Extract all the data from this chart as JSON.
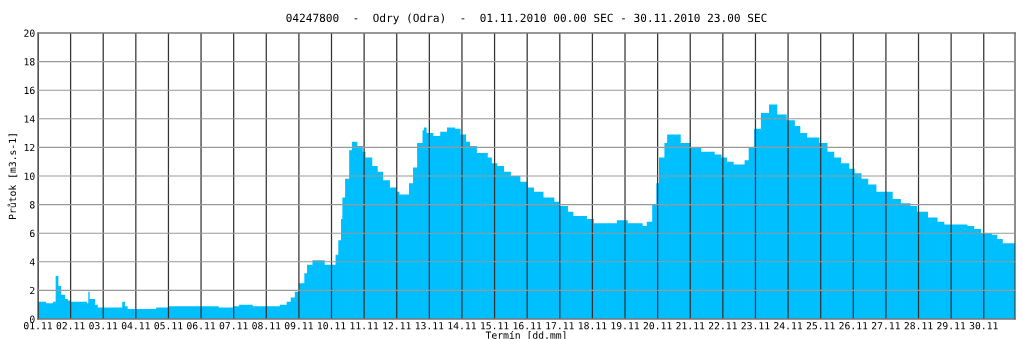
{
  "chart_data": {
    "type": "area",
    "title": "04247800  -  Odry (Odra)  -  01.11.2010 00.00 SEC - 30.11.2010 23.00 SEC",
    "xlabel": "Termín [dd.mm]",
    "ylabel": "Průtok [m3.s-1]",
    "series": [
      {
        "color": "#00bfff",
        "line_style": "step",
        "x": [
          "2010-11-01T00:00",
          "2010-11-01T06:00",
          "2010-11-01T11:00",
          "2010-11-01T13:00",
          "2010-11-01T15:00",
          "2010-11-01T17:00",
          "2010-11-01T20:00",
          "2010-11-01T22:00",
          "2010-11-02T00:00",
          "2010-11-02T12:00",
          "2010-11-02T13:00",
          "2010-11-02T14:00",
          "2010-11-02T18:00",
          "2010-11-02T20:00",
          "2010-11-03T12:00",
          "2010-11-03T14:00",
          "2010-11-03T16:00",
          "2010-11-03T18:00",
          "2010-11-04T13:00",
          "2010-11-04T15:00",
          "2010-11-05T00:00",
          "2010-11-06T12:00",
          "2010-11-06T13:00",
          "2010-11-07T00:00",
          "2010-11-07T04:00",
          "2010-11-07T14:00",
          "2010-11-08T10:00",
          "2010-11-08T15:00",
          "2010-11-08T18:00",
          "2010-11-08T21:00",
          "2010-11-09T00:00",
          "2010-11-09T04:00",
          "2010-11-09T06:00",
          "2010-11-09T10:00",
          "2010-11-09T17:00",
          "2010-11-09T19:00",
          "2010-11-10T03:00",
          "2010-11-10T05:00",
          "2010-11-10T07:00",
          "2010-11-10T08:00",
          "2010-11-10T10:00",
          "2010-11-10T13:00",
          "2010-11-10T15:00",
          "2010-11-10T19:00",
          "2010-11-10T23:00",
          "2010-11-11T01:00",
          "2010-11-11T06:00",
          "2010-11-11T10:00",
          "2010-11-11T14:00",
          "2010-11-11T19:00",
          "2010-11-12T00:00",
          "2010-11-12T02:00",
          "2010-11-12T09:00",
          "2010-11-12T12:00",
          "2010-11-12T15:00",
          "2010-11-12T19:00",
          "2010-11-12T20:00",
          "2010-11-12T22:00",
          "2010-11-13T03:00",
          "2010-11-13T08:00",
          "2010-11-13T13:00",
          "2010-11-13T19:00",
          "2010-11-13T23:00",
          "2010-11-14T03:00",
          "2010-11-14T06:00",
          "2010-11-14T11:00",
          "2010-11-14T19:00",
          "2010-11-14T22:00",
          "2010-11-15T02:00",
          "2010-11-15T07:00",
          "2010-11-15T12:00",
          "2010-11-15T19:00",
          "2010-11-16T00:00",
          "2010-11-16T05:00",
          "2010-11-16T12:00",
          "2010-11-16T20:00",
          "2010-11-17T00:00",
          "2010-11-17T06:00",
          "2010-11-17T10:00",
          "2010-11-17T20:00",
          "2010-11-18T01:00",
          "2010-11-18T18:00",
          "2010-11-19T02:00",
          "2010-11-19T13:00",
          "2010-11-19T16:00",
          "2010-11-19T20:00",
          "2010-11-19T23:00",
          "2010-11-20T01:00",
          "2010-11-20T05:00",
          "2010-11-20T07:00",
          "2010-11-20T17:00",
          "2010-11-21T00:00",
          "2010-11-21T08:00",
          "2010-11-21T18:00",
          "2010-11-21T23:00",
          "2010-11-22T03:00",
          "2010-11-22T08:00",
          "2010-11-22T16:00",
          "2010-11-22T19:00",
          "2010-11-22T23:00",
          "2010-11-23T04:00",
          "2010-11-23T10:00",
          "2010-11-23T16:00",
          "2010-11-23T23:00",
          "2010-11-24T05:00",
          "2010-11-24T09:00",
          "2010-11-24T14:00",
          "2010-11-24T23:00",
          "2010-11-25T05:00",
          "2010-11-25T10:00",
          "2010-11-25T15:00",
          "2010-11-25T21:00",
          "2010-11-26T01:00",
          "2010-11-26T06:00",
          "2010-11-26T11:00",
          "2010-11-26T17:00",
          "2010-11-27T05:00",
          "2010-11-27T11:00",
          "2010-11-27T18:00",
          "2010-11-27T23:00",
          "2010-11-28T07:00",
          "2010-11-28T14:00",
          "2010-11-28T19:00",
          "2010-11-29T12:00",
          "2010-11-29T17:00",
          "2010-11-29T22:00",
          "2010-11-30T06:00",
          "2010-11-30T10:00",
          "2010-11-30T14:00",
          "2010-11-30T23:00"
        ],
        "values": [
          1.2,
          1.1,
          1.2,
          3.0,
          2.3,
          1.7,
          1.4,
          1.3,
          1.2,
          1.1,
          1.9,
          1.4,
          1.0,
          0.8,
          0.8,
          1.2,
          0.9,
          0.7,
          0.7,
          0.8,
          0.9,
          0.9,
          0.8,
          0.9,
          1.0,
          0.9,
          1.0,
          1.2,
          1.5,
          1.9,
          2.5,
          3.2,
          3.8,
          4.1,
          4.1,
          3.8,
          4.5,
          5.5,
          7.0,
          8.5,
          9.8,
          11.8,
          12.4,
          12.1,
          11.7,
          11.3,
          10.7,
          10.3,
          9.7,
          9.2,
          8.9,
          8.7,
          9.5,
          10.6,
          12.3,
          13.2,
          13.4,
          13.0,
          12.8,
          13.1,
          13.4,
          13.3,
          12.9,
          12.4,
          12.1,
          11.6,
          11.3,
          10.9,
          10.7,
          10.3,
          10.0,
          9.6,
          9.2,
          8.9,
          8.5,
          8.2,
          7.9,
          7.5,
          7.2,
          7.0,
          6.7,
          6.9,
          6.7,
          6.5,
          6.8,
          8.0,
          9.5,
          11.3,
          12.3,
          12.9,
          12.3,
          12.0,
          11.7,
          11.5,
          11.3,
          11.0,
          10.8,
          11.1,
          12.0,
          13.3,
          14.4,
          15.0,
          14.3,
          13.9,
          13.5,
          13.0,
          12.7,
          12.3,
          11.7,
          11.3,
          10.9,
          10.5,
          10.2,
          9.8,
          9.4,
          8.9,
          8.4,
          8.1,
          7.9,
          7.5,
          7.1,
          6.8,
          6.6,
          6.5,
          6.3,
          6.0,
          5.9,
          5.6,
          5.3,
          5.3
        ]
      }
    ],
    "xlim": [
      "2010-11-01T00:00",
      "2010-11-30T23:00"
    ],
    "xticks": [
      {
        "value": "2010-11-01",
        "label": "01.11"
      },
      {
        "value": "2010-11-02",
        "label": "02.11"
      },
      {
        "value": "2010-11-03",
        "label": "03.11"
      },
      {
        "value": "2010-11-04",
        "label": "04.11"
      },
      {
        "value": "2010-11-05",
        "label": "05.11"
      },
      {
        "value": "2010-11-06",
        "label": "06.11"
      },
      {
        "value": "2010-11-07",
        "label": "07.11"
      },
      {
        "value": "2010-11-08",
        "label": "08.11"
      },
      {
        "value": "2010-11-09",
        "label": "09.11"
      },
      {
        "value": "2010-11-10",
        "label": "10.11"
      },
      {
        "value": "2010-11-11",
        "label": "11.11"
      },
      {
        "value": "2010-11-12",
        "label": "12.11"
      },
      {
        "value": "2010-11-13",
        "label": "13.11"
      },
      {
        "value": "2010-11-14",
        "label": "14.11"
      },
      {
        "value": "2010-11-15",
        "label": "15.11"
      },
      {
        "value": "2010-11-16",
        "label": "16.11"
      },
      {
        "value": "2010-11-17",
        "label": "17.11"
      },
      {
        "value": "2010-11-18",
        "label": "18.11"
      },
      {
        "value": "2010-11-19",
        "label": "19.11"
      },
      {
        "value": "2010-11-20",
        "label": "20.11"
      },
      {
        "value": "2010-11-21",
        "label": "21.11"
      },
      {
        "value": "2010-11-22",
        "label": "22.11"
      },
      {
        "value": "2010-11-23",
        "label": "23.11"
      },
      {
        "value": "2010-11-24",
        "label": "24.11"
      },
      {
        "value": "2010-11-25",
        "label": "25.11"
      },
      {
        "value": "2010-11-26",
        "label": "26.11"
      },
      {
        "value": "2010-11-27",
        "label": "27.11"
      },
      {
        "value": "2010-11-28",
        "label": "28.11"
      },
      {
        "value": "2010-11-29",
        "label": "29.11"
      },
      {
        "value": "2010-11-30",
        "label": "30.11"
      }
    ],
    "ylim": [
      0,
      20
    ],
    "yticks": [
      0,
      2,
      4,
      6,
      8,
      10,
      12,
      14,
      16,
      18,
      20
    ],
    "grid": true
  }
}
